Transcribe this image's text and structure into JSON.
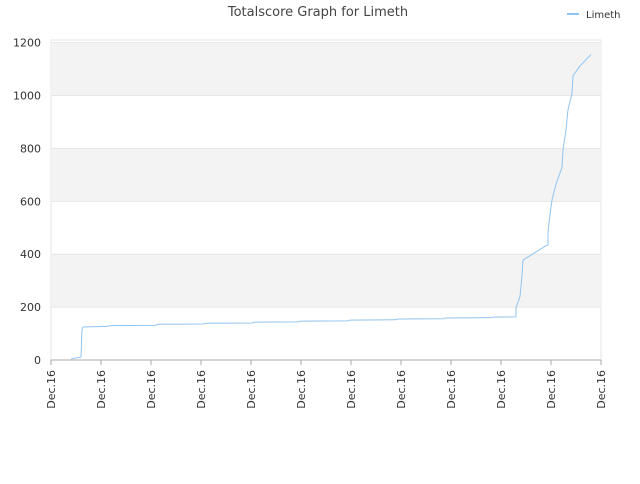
{
  "chart_data": {
    "type": "line",
    "title": "Totalscore Graph for Limeth",
    "x": [
      0.4,
      0.58,
      0.6,
      0.62,
      0.64,
      1.12,
      1.18,
      2.08,
      2.14,
      3.04,
      3.1,
      4.02,
      4.08,
      4.94,
      5.0,
      5.92,
      5.98,
      6.88,
      6.94,
      7.84,
      7.9,
      8.78,
      8.84,
      9.3,
      9.3,
      9.38,
      9.42,
      9.44,
      9.9,
      9.94,
      9.94,
      9.98,
      10.02,
      10.1,
      10.22,
      10.24,
      10.3,
      10.34,
      10.42,
      10.44,
      10.58,
      10.8
    ],
    "series": [
      {
        "name": "Limeth",
        "color": "#90c4f0",
        "values": [
          4,
          11,
          11,
          115,
          125,
          127,
          130,
          131,
          135,
          136,
          139,
          140,
          143,
          144,
          147,
          148,
          151,
          152,
          155,
          156,
          159,
          160,
          162,
          163,
          198,
          240,
          320,
          378,
          432,
          435,
          485,
          550,
          605,
          665,
          728,
          795,
          870,
          947,
          1008,
          1075,
          1112,
          1155
        ]
      }
    ],
    "xlim": [
      0,
      11
    ],
    "xticks": [
      {
        "value": 0,
        "label": "Dec.16"
      },
      {
        "value": 1,
        "label": "Dec.16"
      },
      {
        "value": 2,
        "label": "Dec.16"
      },
      {
        "value": 3,
        "label": "Dec.16"
      },
      {
        "value": 4,
        "label": "Dec.16"
      },
      {
        "value": 5,
        "label": "Dec.16"
      },
      {
        "value": 6,
        "label": "Dec.16"
      },
      {
        "value": 7,
        "label": "Dec.16"
      },
      {
        "value": 8,
        "label": "Dec.16"
      },
      {
        "value": 9,
        "label": "Dec.16"
      },
      {
        "value": 10,
        "label": "Dec.16"
      },
      {
        "value": 11,
        "label": "Dec.16"
      }
    ],
    "ylim": [
      0,
      1210
    ],
    "yticks": [
      0,
      200,
      400,
      600,
      800,
      1000,
      1200
    ],
    "grid": true,
    "legend": "top-right"
  }
}
